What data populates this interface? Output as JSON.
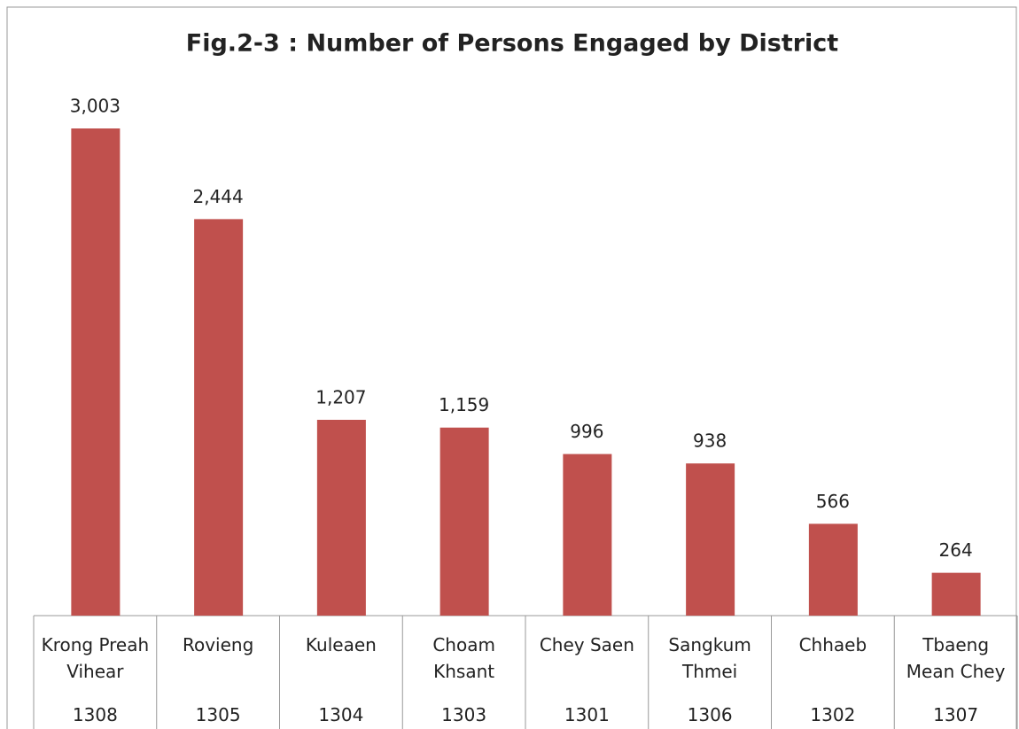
{
  "chart_data": {
    "type": "bar",
    "title": "Fig.2-3 : Number of Persons Engaged by District",
    "categories": [
      "Krong Preah Vihear",
      "Rovieng",
      "Kuleaen",
      "Choam Khsant",
      "Chey Saen",
      "Sangkum Thmei",
      "Chhaeb",
      "Tbaeng Mean Chey"
    ],
    "codes": [
      1308,
      1305,
      1304,
      1303,
      1301,
      1306,
      1302,
      1307
    ],
    "values": [
      3003,
      2444,
      1207,
      1159,
      996,
      938,
      566,
      264
    ],
    "value_labels": [
      "3,003",
      "2,444",
      "1,207",
      "1,159",
      "996",
      "938",
      "566",
      "264"
    ],
    "color": "#c0504d"
  }
}
